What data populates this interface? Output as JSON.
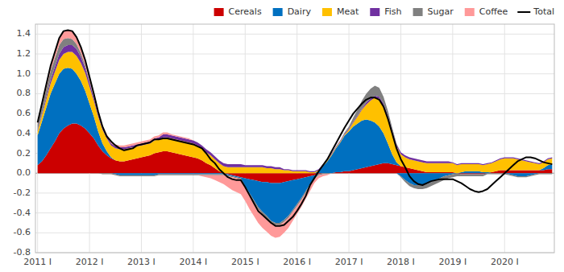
{
  "chart_data": {
    "type": "area",
    "stacked": true,
    "grid": true,
    "legend": "upper right",
    "categories": [
      "2011 I",
      null,
      null,
      null,
      null,
      null,
      null,
      null,
      null,
      null,
      null,
      null,
      "2012 I",
      null,
      null,
      null,
      null,
      null,
      null,
      null,
      null,
      null,
      null,
      null,
      "2013 I",
      null,
      null,
      null,
      null,
      null,
      null,
      null,
      null,
      null,
      null,
      null,
      "2014 I",
      null,
      null,
      null,
      null,
      null,
      null,
      null,
      null,
      null,
      null,
      null,
      "2015 I",
      null,
      null,
      null,
      null,
      null,
      null,
      null,
      null,
      null,
      null,
      null,
      "2016 I",
      null,
      null,
      null,
      null,
      null,
      null,
      null,
      null,
      null,
      null,
      null,
      "2017 I",
      null,
      null,
      null,
      null,
      null,
      null,
      null,
      null,
      null,
      null,
      null,
      "2018 I",
      null,
      null,
      null,
      null,
      null,
      null,
      null,
      null,
      null,
      null,
      null,
      "2019 I",
      null,
      null,
      null,
      null,
      null,
      null,
      null,
      null,
      null,
      null,
      null,
      "2020 I",
      null,
      null,
      null,
      null,
      null,
      null,
      null,
      null,
      null,
      null,
      null
    ],
    "ylim": [
      -0.8,
      1.5
    ],
    "yticks": [
      -0.8,
      -0.6,
      -0.4,
      -0.2,
      {
        "value": 0,
        "label": "0.0"
      },
      0.2,
      0.4,
      0.6,
      0.8,
      {
        "value": 1,
        "label": "1.0"
      },
      1.2,
      1.4
    ],
    "series": [
      {
        "name": "Cereals",
        "color": "#CC0000",
        "values": [
          0.08,
          0.12,
          0.18,
          0.25,
          0.32,
          0.4,
          0.45,
          0.48,
          0.5,
          0.5,
          0.48,
          0.45,
          0.4,
          0.35,
          0.28,
          0.22,
          0.18,
          0.15,
          0.13,
          0.12,
          0.12,
          0.13,
          0.14,
          0.15,
          0.16,
          0.17,
          0.18,
          0.2,
          0.21,
          0.22,
          0.22,
          0.21,
          0.2,
          0.19,
          0.18,
          0.17,
          0.16,
          0.15,
          0.13,
          0.1,
          0.08,
          0.05,
          0.02,
          0.0,
          -0.01,
          -0.02,
          -0.03,
          -0.04,
          -0.05,
          -0.06,
          -0.07,
          -0.08,
          -0.09,
          -0.09,
          -0.1,
          -0.1,
          -0.1,
          -0.09,
          -0.08,
          -0.07,
          -0.06,
          -0.05,
          -0.04,
          -0.03,
          -0.02,
          -0.01,
          0.0,
          0.0,
          0.0,
          0.01,
          0.01,
          0.02,
          0.02,
          0.03,
          0.04,
          0.05,
          0.06,
          0.07,
          0.08,
          0.09,
          0.1,
          0.1,
          0.09,
          0.08,
          0.07,
          0.06,
          0.05,
          0.04,
          0.03,
          0.02,
          0.01,
          0.01,
          0.01,
          0.01,
          0.01,
          0.01,
          0.01,
          0.0,
          -0.01,
          -0.01,
          -0.01,
          -0.01,
          -0.01,
          -0.01,
          0.0,
          0.01,
          0.02,
          0.03,
          0.03,
          0.03,
          0.03,
          0.03,
          0.03,
          0.03,
          0.03,
          0.03,
          0.03,
          0.03,
          0.04,
          0.04
        ]
      },
      {
        "name": "Dairy",
        "color": "#0070C0",
        "values": [
          0.3,
          0.4,
          0.48,
          0.55,
          0.58,
          0.6,
          0.6,
          0.58,
          0.55,
          0.5,
          0.45,
          0.38,
          0.3,
          0.22,
          0.14,
          0.08,
          0.04,
          0.01,
          -0.01,
          -0.02,
          -0.02,
          -0.02,
          -0.02,
          -0.02,
          -0.02,
          -0.02,
          -0.02,
          -0.02,
          -0.01,
          -0.01,
          -0.01,
          -0.01,
          -0.01,
          -0.01,
          -0.01,
          -0.01,
          -0.01,
          -0.01,
          -0.01,
          -0.01,
          -0.01,
          -0.01,
          -0.01,
          -0.01,
          -0.01,
          -0.01,
          -0.01,
          -0.01,
          -0.08,
          -0.14,
          -0.2,
          -0.26,
          -0.3,
          -0.34,
          -0.38,
          -0.4,
          -0.4,
          -0.38,
          -0.35,
          -0.3,
          -0.25,
          -0.2,
          -0.14,
          -0.08,
          -0.03,
          0.02,
          0.07,
          0.12,
          0.18,
          0.24,
          0.3,
          0.36,
          0.4,
          0.44,
          0.46,
          0.48,
          0.48,
          0.46,
          0.43,
          0.38,
          0.3,
          0.2,
          0.1,
          0.03,
          -0.03,
          -0.07,
          -0.1,
          -0.12,
          -0.12,
          -0.12,
          -0.11,
          -0.09,
          -0.07,
          -0.05,
          -0.03,
          -0.02,
          -0.01,
          0.0,
          0.01,
          0.02,
          0.02,
          0.02,
          0.02,
          0.01,
          0.01,
          0.0,
          0.0,
          0.0,
          0.0,
          -0.01,
          -0.02,
          -0.03,
          -0.03,
          -0.03,
          -0.02,
          -0.01,
          0.0,
          0.02,
          0.04,
          0.05
        ]
      },
      {
        "name": "Meat",
        "color": "#FFC000",
        "values": [
          0.04,
          0.06,
          0.08,
          0.1,
          0.12,
          0.14,
          0.15,
          0.16,
          0.17,
          0.18,
          0.18,
          0.18,
          0.17,
          0.16,
          0.15,
          0.14,
          0.13,
          0.12,
          0.12,
          0.12,
          0.12,
          0.12,
          0.12,
          0.12,
          0.12,
          0.12,
          0.12,
          0.13,
          0.13,
          0.14,
          0.14,
          0.14,
          0.14,
          0.14,
          0.14,
          0.14,
          0.14,
          0.13,
          0.12,
          0.11,
          0.1,
          0.09,
          0.08,
          0.07,
          0.06,
          0.06,
          0.06,
          0.06,
          0.06,
          0.06,
          0.06,
          0.06,
          0.06,
          0.05,
          0.05,
          0.04,
          0.04,
          0.03,
          0.03,
          0.02,
          0.02,
          0.02,
          0.02,
          0.01,
          0.01,
          0.01,
          0.01,
          0.01,
          0.01,
          0.01,
          0.01,
          0.01,
          0.02,
          0.04,
          0.07,
          0.11,
          0.15,
          0.2,
          0.25,
          0.28,
          0.28,
          0.26,
          0.22,
          0.16,
          0.12,
          0.1,
          0.09,
          0.09,
          0.09,
          0.09,
          0.09,
          0.09,
          0.09,
          0.09,
          0.09,
          0.09,
          0.09,
          0.08,
          0.08,
          0.07,
          0.07,
          0.07,
          0.07,
          0.07,
          0.08,
          0.09,
          0.1,
          0.11,
          0.12,
          0.12,
          0.12,
          0.11,
          0.1,
          0.09,
          0.08,
          0.07,
          0.06,
          0.06,
          0.06,
          0.06
        ]
      },
      {
        "name": "Fish",
        "color": "#7030A0",
        "values": [
          0.01,
          0.02,
          0.03,
          0.04,
          0.05,
          0.06,
          0.07,
          0.07,
          0.07,
          0.07,
          0.06,
          0.05,
          0.04,
          0.03,
          0.03,
          0.02,
          0.02,
          0.02,
          0.02,
          0.02,
          0.02,
          0.02,
          0.02,
          0.02,
          0.02,
          0.02,
          0.02,
          0.02,
          0.02,
          0.03,
          0.03,
          0.03,
          0.03,
          0.03,
          0.03,
          0.03,
          0.03,
          0.03,
          0.03,
          0.03,
          0.03,
          0.03,
          0.03,
          0.03,
          0.03,
          0.03,
          0.03,
          0.03,
          0.02,
          0.02,
          0.02,
          0.02,
          0.02,
          0.02,
          0.02,
          0.02,
          0.02,
          0.01,
          0.01,
          0.01,
          0.01,
          0.01,
          0.01,
          0.01,
          0.01,
          0.01,
          0.01,
          0.01,
          0.01,
          0.01,
          0.01,
          0.01,
          0.01,
          0.01,
          0.01,
          0.01,
          0.02,
          0.02,
          0.02,
          0.02,
          0.02,
          0.02,
          0.02,
          0.02,
          0.02,
          0.02,
          0.02,
          0.02,
          0.02,
          0.02,
          0.02,
          0.02,
          0.02,
          0.02,
          0.02,
          0.02,
          0.01,
          0.01,
          0.01,
          0.01,
          0.01,
          0.01,
          0.01,
          0.01,
          0.01,
          0.01,
          0.01,
          0.01,
          0.01,
          0.01,
          0.01,
          0.01,
          0.01,
          0.01,
          0.01,
          0.01,
          0.01,
          0.01,
          0.01,
          0.01
        ]
      },
      {
        "name": "Sugar",
        "color": "#808080",
        "values": [
          0.06,
          0.07,
          0.08,
          0.09,
          0.09,
          0.09,
          0.08,
          0.07,
          0.06,
          0.05,
          0.04,
          0.03,
          0.02,
          0.01,
          0.0,
          -0.01,
          -0.01,
          -0.01,
          -0.01,
          -0.01,
          -0.01,
          -0.01,
          -0.01,
          -0.01,
          -0.01,
          -0.01,
          -0.01,
          -0.01,
          -0.01,
          -0.01,
          -0.01,
          -0.01,
          -0.01,
          -0.01,
          -0.01,
          -0.01,
          -0.01,
          -0.01,
          -0.01,
          -0.01,
          -0.01,
          -0.01,
          -0.01,
          -0.01,
          -0.01,
          -0.01,
          -0.01,
          -0.01,
          -0.01,
          -0.02,
          -0.02,
          -0.02,
          -0.02,
          -0.02,
          -0.02,
          -0.02,
          -0.02,
          -0.02,
          -0.02,
          -0.02,
          -0.02,
          -0.02,
          -0.02,
          -0.02,
          -0.01,
          -0.01,
          -0.01,
          -0.01,
          0.0,
          0.0,
          0.0,
          0.01,
          0.02,
          0.04,
          0.06,
          0.08,
          0.09,
          0.1,
          0.1,
          0.09,
          0.07,
          0.05,
          0.03,
          0.01,
          -0.01,
          -0.02,
          -0.03,
          -0.03,
          -0.04,
          -0.04,
          -0.04,
          -0.04,
          -0.04,
          -0.04,
          -0.04,
          -0.03,
          -0.03,
          -0.03,
          -0.02,
          -0.02,
          -0.02,
          -0.02,
          -0.02,
          -0.02,
          -0.01,
          -0.01,
          -0.01,
          -0.01,
          -0.01,
          -0.01,
          -0.01,
          -0.01,
          -0.01,
          -0.01,
          -0.01,
          -0.01,
          -0.01,
          -0.01,
          -0.01,
          -0.01
        ]
      },
      {
        "name": "Coffee",
        "color": "#FF9999",
        "values": [
          0.02,
          0.03,
          0.04,
          0.05,
          0.06,
          0.07,
          0.08,
          0.08,
          0.08,
          0.07,
          0.06,
          0.05,
          0.04,
          0.03,
          0.03,
          0.02,
          0.02,
          0.02,
          0.02,
          0.02,
          0.02,
          0.02,
          0.02,
          0.02,
          0.02,
          0.02,
          0.02,
          0.02,
          0.02,
          0.02,
          0.02,
          0.01,
          0.01,
          0.01,
          0.01,
          0.01,
          0.0,
          0.0,
          -0.01,
          -0.02,
          -0.03,
          -0.05,
          -0.07,
          -0.09,
          -0.11,
          -0.13,
          -0.14,
          -0.15,
          -0.14,
          -0.14,
          -0.14,
          -0.14,
          -0.14,
          -0.14,
          -0.13,
          -0.13,
          -0.12,
          -0.11,
          -0.1,
          -0.09,
          -0.08,
          -0.07,
          -0.06,
          -0.05,
          -0.04,
          -0.03,
          -0.02,
          -0.01,
          0.0,
          0.0,
          0.0,
          0.0,
          0.0,
          0.0,
          0.0,
          0.0,
          0.0,
          0.0,
          0.0,
          0.0,
          0.0,
          0.0,
          0.0,
          0.0,
          0.0,
          0.0,
          0.0,
          0.0,
          0.0,
          0.0,
          0.0,
          0.0,
          0.0,
          0.0,
          0.0,
          0.0,
          0.0,
          0.0,
          0.0,
          0.0,
          0.0,
          0.0,
          0.0,
          0.0,
          0.0,
          0.0,
          0.0,
          0.0,
          0.0,
          0.0,
          0.0,
          0.0,
          0.0,
          0.0,
          0.0,
          0.0,
          0.0,
          0.0,
          0.0,
          0.0
        ]
      },
      {
        "name": "Total",
        "color": "#000000",
        "type": "line",
        "values": [
          0.51,
          0.7,
          0.89,
          1.08,
          1.22,
          1.36,
          1.43,
          1.44,
          1.43,
          1.37,
          1.27,
          1.14,
          0.97,
          0.8,
          0.62,
          0.47,
          0.37,
          0.32,
          0.28,
          0.25,
          0.23,
          0.24,
          0.25,
          0.28,
          0.29,
          0.3,
          0.31,
          0.34,
          0.34,
          0.35,
          0.35,
          0.34,
          0.33,
          0.32,
          0.31,
          0.3,
          0.29,
          0.27,
          0.25,
          0.2,
          0.14,
          0.1,
          0.04,
          0.0,
          -0.04,
          -0.06,
          -0.07,
          -0.07,
          -0.14,
          -0.22,
          -0.3,
          -0.38,
          -0.42,
          -0.46,
          -0.5,
          -0.53,
          -0.53,
          -0.52,
          -0.48,
          -0.44,
          -0.38,
          -0.31,
          -0.23,
          -0.12,
          -0.05,
          0.02,
          0.08,
          0.14,
          0.22,
          0.3,
          0.38,
          0.46,
          0.53,
          0.6,
          0.65,
          0.7,
          0.74,
          0.76,
          0.76,
          0.74,
          0.67,
          0.55,
          0.4,
          0.25,
          0.14,
          0.06,
          -0.03,
          -0.08,
          -0.11,
          -0.12,
          -0.1,
          -0.08,
          -0.07,
          -0.06,
          -0.06,
          -0.06,
          -0.06,
          -0.08,
          -0.1,
          -0.13,
          -0.16,
          -0.18,
          -0.19,
          -0.18,
          -0.16,
          -0.12,
          -0.08,
          -0.04,
          0.0,
          0.04,
          0.08,
          0.12,
          0.14,
          0.16,
          0.16,
          0.15,
          0.13,
          0.11,
          0.1,
          0.09
        ]
      }
    ]
  }
}
